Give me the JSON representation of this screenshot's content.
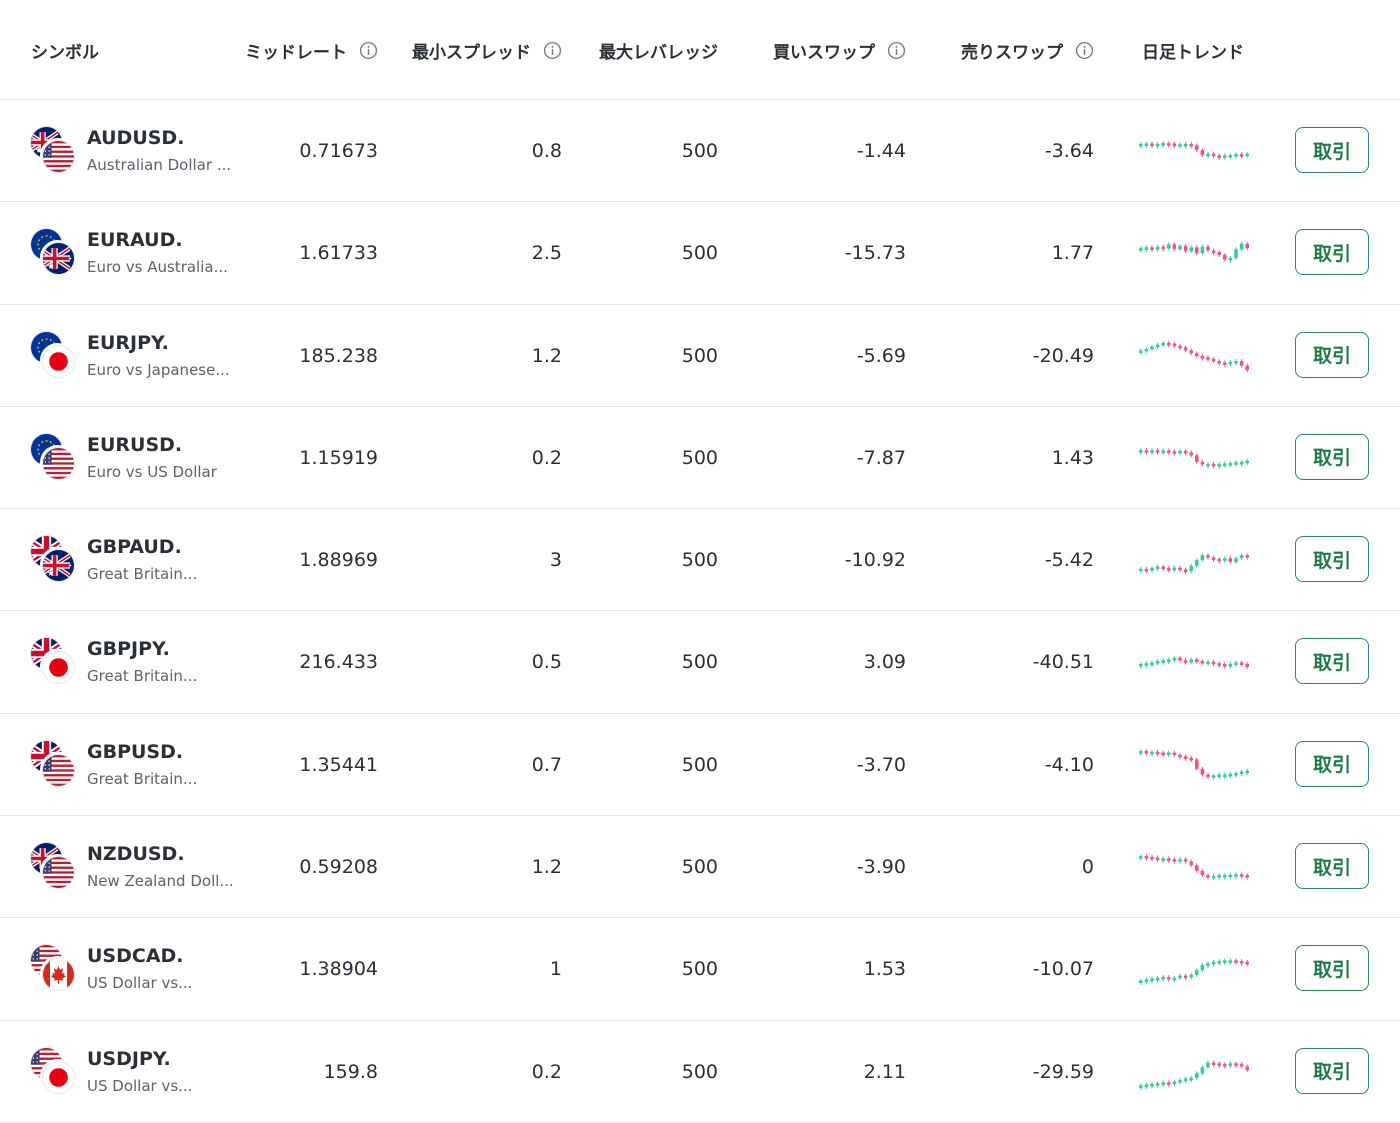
{
  "colors": {
    "up": "#37c9a4",
    "down": "#f0567a",
    "button_border": "#2e8b57",
    "button_text": "#1f7a45",
    "divider": "#e3e5e8"
  },
  "header": {
    "symbol": "シンボル",
    "mid_rate": "ミッドレート",
    "min_spread": "最小スプレッド",
    "max_leverage": "最大レバレッジ",
    "buy_swap": "買いスワップ",
    "sell_swap": "売りスワップ",
    "daily_trend": "日足トレンド",
    "info_icon": "info-circle-icon"
  },
  "rows": [
    {
      "symbol": "AUDUSD.",
      "description": "Australian Dollar ...",
      "base_flag": "au",
      "quote_flag": "us",
      "mid": "0.71673",
      "spread": "0.8",
      "leverage": "500",
      "buy_swap": "-1.44",
      "sell_swap": "-3.64",
      "button": "取引",
      "trend": [
        0.26,
        0.25,
        0.27,
        0.26,
        0.24,
        0.25,
        0.28,
        0.27,
        0.26,
        0.3,
        0.42,
        0.55,
        0.52,
        0.56,
        0.57,
        0.56,
        0.55,
        0.53,
        0.54,
        0.52
      ]
    },
    {
      "symbol": "EURAUD.",
      "description": "Euro vs Australia...",
      "base_flag": "eu",
      "quote_flag": "au",
      "mid": "1.61733",
      "spread": "2.5",
      "leverage": "500",
      "buy_swap": "-15.73",
      "sell_swap": "1.77",
      "button": "取引",
      "trend": [
        0.32,
        0.3,
        0.36,
        0.28,
        0.33,
        0.22,
        0.35,
        0.26,
        0.4,
        0.3,
        0.45,
        0.28,
        0.38,
        0.42,
        0.5,
        0.62,
        0.58,
        0.35,
        0.2,
        0.32
      ]
    },
    {
      "symbol": "EURJPY.",
      "description": "Euro vs Japanese...",
      "base_flag": "eu",
      "quote_flag": "jp",
      "mid": "185.238",
      "spread": "1.2",
      "leverage": "500",
      "buy_swap": "-5.69",
      "sell_swap": "-20.49",
      "button": "取引",
      "trend": [
        0.3,
        0.26,
        0.2,
        0.15,
        0.1,
        0.12,
        0.18,
        0.22,
        0.3,
        0.38,
        0.45,
        0.48,
        0.52,
        0.58,
        0.62,
        0.66,
        0.6,
        0.58,
        0.7,
        0.82
      ]
    },
    {
      "symbol": "EURUSD.",
      "description": "Euro vs US Dollar",
      "base_flag": "eu",
      "quote_flag": "us",
      "mid": "1.15919",
      "spread": "0.2",
      "leverage": "500",
      "buy_swap": "-7.87",
      "sell_swap": "1.43",
      "button": "取引",
      "trend": [
        0.24,
        0.25,
        0.24,
        0.26,
        0.25,
        0.27,
        0.28,
        0.26,
        0.3,
        0.38,
        0.55,
        0.62,
        0.6,
        0.62,
        0.61,
        0.59,
        0.58,
        0.56,
        0.55,
        0.52
      ]
    },
    {
      "symbol": "GBPAUD.",
      "description": "Great Britain...",
      "base_flag": "gb",
      "quote_flag": "au",
      "mid": "1.88969",
      "spread": "3",
      "leverage": "500",
      "buy_swap": "-10.92",
      "sell_swap": "-5.42",
      "button": "取引",
      "trend": [
        0.68,
        0.7,
        0.66,
        0.62,
        0.66,
        0.72,
        0.65,
        0.7,
        0.74,
        0.6,
        0.45,
        0.32,
        0.38,
        0.42,
        0.46,
        0.4,
        0.5,
        0.4,
        0.32,
        0.38
      ]
    },
    {
      "symbol": "GBPJPY.",
      "description": "Great Britain...",
      "base_flag": "gb",
      "quote_flag": "jp",
      "mid": "216.433",
      "spread": "0.5",
      "leverage": "500",
      "buy_swap": "3.09",
      "sell_swap": "-40.51",
      "button": "取引",
      "trend": [
        0.5,
        0.48,
        0.46,
        0.42,
        0.4,
        0.38,
        0.34,
        0.4,
        0.46,
        0.38,
        0.42,
        0.46,
        0.44,
        0.48,
        0.5,
        0.52,
        0.5,
        0.46,
        0.5,
        0.58
      ]
    },
    {
      "symbol": "GBPUSD.",
      "description": "Great Britain...",
      "base_flag": "gb",
      "quote_flag": "us",
      "mid": "1.35441",
      "spread": "0.7",
      "leverage": "500",
      "buy_swap": "-3.70",
      "sell_swap": "-4.10",
      "button": "取引",
      "trend": [
        0.08,
        0.1,
        0.1,
        0.12,
        0.14,
        0.12,
        0.18,
        0.22,
        0.26,
        0.3,
        0.55,
        0.7,
        0.76,
        0.72,
        0.7,
        0.7,
        0.68,
        0.66,
        0.62,
        0.6
      ]
    },
    {
      "symbol": "NZDUSD.",
      "description": "New Zealand Doll...",
      "base_flag": "nz",
      "quote_flag": "us",
      "mid": "0.59208",
      "spread": "1.2",
      "leverage": "500",
      "buy_swap": "-3.90",
      "sell_swap": "0",
      "button": "取引",
      "trend": [
        0.16,
        0.18,
        0.2,
        0.22,
        0.22,
        0.24,
        0.26,
        0.24,
        0.3,
        0.4,
        0.55,
        0.66,
        0.7,
        0.68,
        0.66,
        0.66,
        0.65,
        0.64,
        0.66,
        0.7
      ]
    },
    {
      "symbol": "USDCAD.",
      "description": "US Dollar vs...",
      "base_flag": "us",
      "quote_flag": "ca",
      "mid": "1.38904",
      "spread": "1",
      "leverage": "500",
      "buy_swap": "1.53",
      "sell_swap": "-10.07",
      "button": "取引",
      "trend": [
        0.75,
        0.72,
        0.7,
        0.68,
        0.66,
        0.7,
        0.68,
        0.62,
        0.66,
        0.6,
        0.48,
        0.34,
        0.3,
        0.26,
        0.24,
        0.22,
        0.22,
        0.24,
        0.26,
        0.3
      ]
    },
    {
      "symbol": "USDJPY.",
      "description": "US Dollar vs...",
      "base_flag": "us",
      "quote_flag": "jp",
      "mid": "159.8",
      "spread": "0.2",
      "leverage": "500",
      "buy_swap": "2.11",
      "sell_swap": "-29.59",
      "button": "取引",
      "trend": [
        0.8,
        0.78,
        0.76,
        0.74,
        0.72,
        0.74,
        0.7,
        0.66,
        0.62,
        0.6,
        0.48,
        0.32,
        0.2,
        0.22,
        0.24,
        0.26,
        0.22,
        0.24,
        0.3,
        0.4
      ]
    }
  ]
}
